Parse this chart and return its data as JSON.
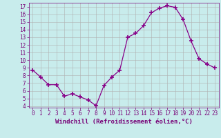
{
  "x": [
    0,
    1,
    2,
    3,
    4,
    5,
    6,
    7,
    8,
    9,
    10,
    11,
    12,
    13,
    14,
    15,
    16,
    17,
    18,
    19,
    20,
    21,
    22,
    23
  ],
  "y": [
    8.7,
    7.8,
    6.8,
    6.8,
    5.3,
    5.6,
    5.2,
    4.8,
    4.05,
    6.7,
    7.8,
    8.7,
    13.0,
    13.5,
    14.5,
    16.2,
    16.8,
    17.1,
    16.9,
    15.3,
    12.5,
    10.2,
    9.5,
    9.0
  ],
  "line_color": "#880088",
  "marker": "+",
  "markersize": 4,
  "markeredgewidth": 1.2,
  "linewidth": 0.9,
  "bg_color": "#c8ecec",
  "grid_color": "#b0b0b0",
  "xlabel": "Windchill (Refroidissement éolien,°C)",
  "ylim": [
    3.8,
    17.5
  ],
  "xlim": [
    -0.5,
    23.5
  ],
  "yticks": [
    4,
    5,
    6,
    7,
    8,
    9,
    10,
    11,
    12,
    13,
    14,
    15,
    16,
    17
  ],
  "xticks": [
    0,
    1,
    2,
    3,
    4,
    5,
    6,
    7,
    8,
    9,
    10,
    11,
    12,
    13,
    14,
    15,
    16,
    17,
    18,
    19,
    20,
    21,
    22,
    23
  ],
  "tick_fontsize": 5.5,
  "xlabel_fontsize": 6.5,
  "axis_color": "#770077"
}
